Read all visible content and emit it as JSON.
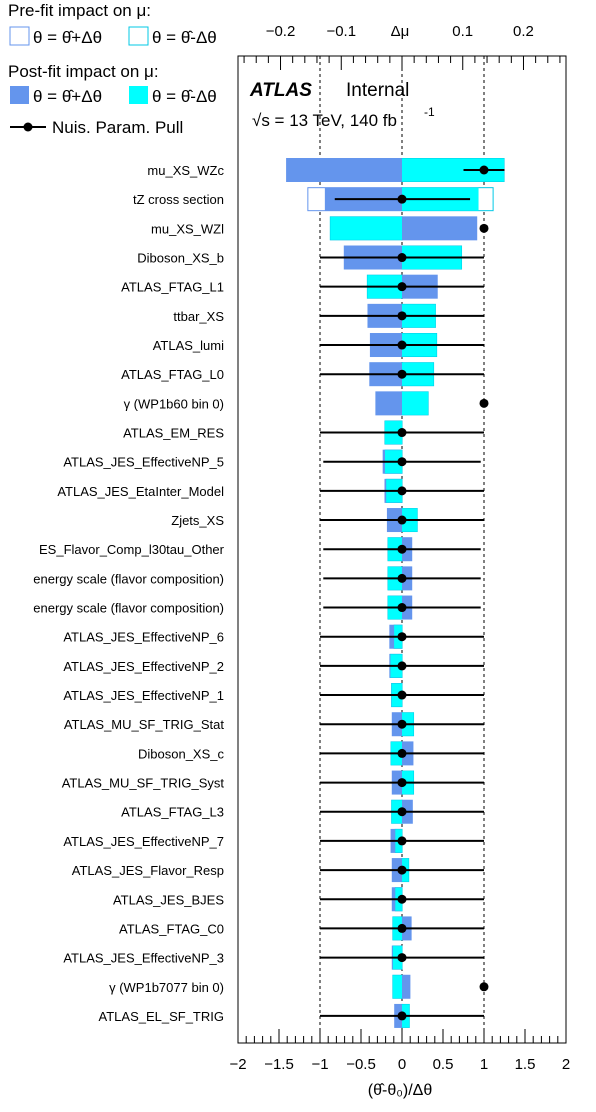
{
  "chart_data": {
    "type": "bar",
    "orientation": "horizontal",
    "xlabel": "(θ̂-θ₀)/Δθ",
    "xlim": [
      -2,
      2
    ],
    "xticks": [
      "−2",
      "−1.5",
      "−1",
      "−0.5",
      "0",
      "0.5",
      "1",
      "1.5",
      "2"
    ],
    "top_axis_label": "Δμ",
    "top_xlim": [
      -0.27,
      0.27
    ],
    "top_xticks": [
      "−0.2",
      "−0.1",
      "0.1",
      "0.2"
    ],
    "top_xtick_values": [
      -0.2,
      -0.1,
      0.1,
      0.2
    ],
    "grid_vertical_dashed_at": [
      -1,
      0,
      1
    ],
    "legend_placement": "top-left",
    "legend": {
      "prefit_title": "Pre-fit impact on  μ:",
      "prefit_plus": "θ = θ̂+Δθ",
      "prefit_minus": "θ = θ̂-Δθ",
      "postfit_title": "Post-fit impact on  μ:",
      "postfit_plus": "θ = θ̂+Δθ",
      "postfit_minus": "θ = θ̂-Δθ",
      "pull": "Nuis. Param. Pull"
    },
    "annotation": {
      "experiment": "ATLAS",
      "status": "Internal",
      "energy": "√s = 13 TeV, 140 fb",
      "energy_sup": "-1"
    },
    "colors": {
      "plus": "#6495ed",
      "minus": "#00ffff",
      "prefit_plus_border": "#6495ed",
      "prefit_minus_border": "#00c8e6",
      "pull": "#000000"
    },
    "parameters": [
      {
        "label": "mu_XS_WZc",
        "post_plus": -0.19,
        "post_minus": 0.168,
        "pre_plus": -0.19,
        "pre_minus": 0.168,
        "pull": 1.0,
        "err_lo": -0.25,
        "err_hi": 0.25
      },
      {
        "label": "tZ cross section",
        "post_plus": -0.127,
        "post_minus": 0.126,
        "pre_plus": -0.155,
        "pre_minus": 0.15,
        "pull": 0.0,
        "err_lo": -0.82,
        "err_hi": 0.83
      },
      {
        "label": "mu_XS_WZl",
        "post_plus": 0.123,
        "post_minus": -0.118,
        "pre_plus": 0.123,
        "pre_minus": -0.118,
        "pull": 1.0,
        "err_lo": -0.03,
        "err_hi": 0.03
      },
      {
        "label": "Diboson_XS_b",
        "post_plus": -0.095,
        "post_minus": 0.098,
        "pre_plus": -0.095,
        "pre_minus": 0.098,
        "pull": 0.0,
        "err_lo": -1.0,
        "err_hi": 1.0
      },
      {
        "label": "ATLAS_FTAG_L1",
        "post_plus": 0.058,
        "post_minus": -0.057,
        "pre_plus": 0.058,
        "pre_minus": -0.057,
        "pull": 0.0,
        "err_lo": -1.0,
        "err_hi": 1.0
      },
      {
        "label": "ttbar_XS",
        "post_plus": -0.056,
        "post_minus": 0.055,
        "pre_plus": -0.056,
        "pre_minus": 0.055,
        "pull": 0.0,
        "err_lo": -1.0,
        "err_hi": 1.0
      },
      {
        "label": "ATLAS_lumi",
        "post_plus": -0.052,
        "post_minus": 0.057,
        "pre_plus": -0.052,
        "pre_minus": 0.057,
        "pull": 0.0,
        "err_lo": -1.0,
        "err_hi": 1.0
      },
      {
        "label": "ATLAS_FTAG_L0",
        "post_plus": -0.053,
        "post_minus": 0.052,
        "pre_plus": -0.053,
        "pre_minus": 0.052,
        "pull": 0.0,
        "err_lo": -1.0,
        "err_hi": 1.0
      },
      {
        "label": "γ (WP1b60 bin 0)",
        "post_plus": -0.043,
        "post_minus": 0.043,
        "pre_plus": -0.043,
        "pre_minus": 0.043,
        "pull": 1.0,
        "err_lo": -0.03,
        "err_hi": 0.03
      },
      {
        "label": "ATLAS_EM_RES",
        "post_plus": -0.028,
        "post_minus": -0.028,
        "pre_plus": -0.028,
        "pre_minus": -0.028,
        "pull": 0.0,
        "err_lo": -1.0,
        "err_hi": 1.0
      },
      {
        "label": "ATLAS_JES_EffectiveNP_5",
        "post_plus": -0.031,
        "post_minus": -0.028,
        "pre_plus": -0.031,
        "pre_minus": -0.028,
        "pull": 0.0,
        "err_lo": -0.96,
        "err_hi": 0.96
      },
      {
        "label": "ATLAS_JES_EtaInter_Model",
        "post_plus": -0.028,
        "post_minus": -0.026,
        "pre_plus": -0.028,
        "pre_minus": -0.026,
        "pull": 0.0,
        "err_lo": -1.0,
        "err_hi": 1.0
      },
      {
        "label": "Zjets_XS",
        "post_plus": -0.024,
        "post_minus": 0.025,
        "pre_plus": -0.024,
        "pre_minus": 0.025,
        "pull": 0.0,
        "err_lo": -1.0,
        "err_hi": 1.0
      },
      {
        "label": "ES_Flavor_Comp_l30tau_Other",
        "post_plus": 0.016,
        "post_minus": -0.023,
        "pre_plus": 0.016,
        "pre_minus": -0.023,
        "pull": 0.0,
        "err_lo": -0.96,
        "err_hi": 0.96
      },
      {
        "label": "energy scale (flavor composition)",
        "post_plus": 0.016,
        "post_minus": -0.023,
        "pre_plus": 0.016,
        "pre_minus": -0.023,
        "pull": 0.0,
        "err_lo": -0.96,
        "err_hi": 0.96
      },
      {
        "label": "energy scale (flavor composition)",
        "post_plus": 0.016,
        "post_minus": -0.023,
        "pre_plus": 0.016,
        "pre_minus": -0.023,
        "pull": 0.0,
        "err_lo": -0.96,
        "err_hi": 0.96
      },
      {
        "label": "ATLAS_JES_EffectiveNP_6",
        "post_plus": -0.02,
        "post_minus": -0.013,
        "pre_plus": -0.02,
        "pre_minus": -0.013,
        "pull": 0.0,
        "err_lo": -1.0,
        "err_hi": 1.0
      },
      {
        "label": "ATLAS_JES_EffectiveNP_2",
        "post_plus": -0.02,
        "post_minus": -0.019,
        "pre_plus": -0.02,
        "pre_minus": -0.019,
        "pull": 0.0,
        "err_lo": -1.0,
        "err_hi": 1.0
      },
      {
        "label": "ATLAS_JES_EffectiveNP_1",
        "post_plus": -0.017,
        "post_minus": -0.017,
        "pre_plus": -0.017,
        "pre_minus": -0.017,
        "pull": 0.0,
        "err_lo": -1.0,
        "err_hi": 1.0
      },
      {
        "label": "ATLAS_MU_SF_TRIG_Stat",
        "post_plus": -0.016,
        "post_minus": 0.019,
        "pre_plus": -0.016,
        "pre_minus": 0.019,
        "pull": 0.0,
        "err_lo": -1.0,
        "err_hi": 1.0
      },
      {
        "label": "Diboson_XS_c",
        "post_plus": 0.018,
        "post_minus": -0.018,
        "pre_plus": 0.018,
        "pre_minus": -0.018,
        "pull": 0.0,
        "err_lo": -1.0,
        "err_hi": 1.0
      },
      {
        "label": "ATLAS_MU_SF_TRIG_Syst",
        "post_plus": -0.016,
        "post_minus": 0.019,
        "pre_plus": -0.016,
        "pre_minus": 0.019,
        "pull": 0.0,
        "err_lo": -1.0,
        "err_hi": 1.0
      },
      {
        "label": "ATLAS_FTAG_L3",
        "post_plus": 0.017,
        "post_minus": -0.017,
        "pre_plus": 0.017,
        "pre_minus": -0.017,
        "pull": 0.0,
        "err_lo": -1.0,
        "err_hi": 1.0
      },
      {
        "label": "ATLAS_JES_EffectiveNP_7",
        "post_plus": -0.018,
        "post_minus": -0.011,
        "pre_plus": -0.018,
        "pre_minus": -0.011,
        "pull": 0.0,
        "err_lo": -1.0,
        "err_hi": 1.0
      },
      {
        "label": "ATLAS_JES_Flavor_Resp",
        "post_plus": -0.016,
        "post_minus": 0.011,
        "pre_plus": -0.016,
        "pre_minus": 0.011,
        "pull": 0.0,
        "err_lo": -1.0,
        "err_hi": 1.0
      },
      {
        "label": "ATLAS_JES_BJES",
        "post_plus": -0.016,
        "post_minus": -0.011,
        "pre_plus": -0.016,
        "pre_minus": -0.011,
        "pull": 0.0,
        "err_lo": -1.0,
        "err_hi": 1.0
      },
      {
        "label": "ATLAS_FTAG_C0",
        "post_plus": 0.015,
        "post_minus": -0.015,
        "pre_plus": 0.015,
        "pre_minus": -0.015,
        "pull": 0.0,
        "err_lo": -1.0,
        "err_hi": 1.0
      },
      {
        "label": "ATLAS_JES_EffectiveNP_3",
        "post_plus": -0.016,
        "post_minus": -0.015,
        "pre_plus": -0.016,
        "pre_minus": -0.015,
        "pull": 0.0,
        "err_lo": -1.0,
        "err_hi": 1.0
      },
      {
        "label": "γ (WP1b7077 bin 0)",
        "post_plus": 0.013,
        "post_minus": -0.015,
        "pre_plus": 0.013,
        "pre_minus": -0.015,
        "pull": 1.0,
        "err_lo": -0.03,
        "err_hi": 0.03
      },
      {
        "label": "ATLAS_EL_SF_TRIG",
        "post_plus": -0.012,
        "post_minus": 0.012,
        "pre_plus": -0.012,
        "pre_minus": 0.012,
        "pull": 0.0,
        "err_lo": -1.0,
        "err_hi": 1.0
      }
    ]
  }
}
